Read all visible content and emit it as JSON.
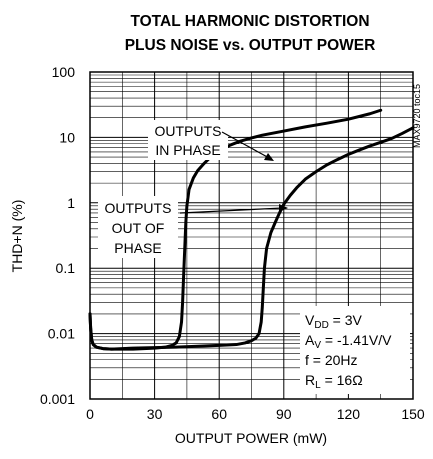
{
  "chart_data": {
    "type": "line",
    "title_lines": [
      "TOTAL HARMONIC DISTORTION",
      "PLUS NOISE vs. OUTPUT POWER"
    ],
    "xlabel": "OUTPUT POWER (mW)",
    "ylabel": "THD+N (%)",
    "x_scale": "linear",
    "y_scale": "log",
    "xlim": [
      0,
      150
    ],
    "ylim": [
      0.001,
      100
    ],
    "x_ticks": [
      0,
      30,
      60,
      90,
      120,
      150
    ],
    "x_tick_labels": [
      "0",
      "30",
      "60",
      "90",
      "120",
      "150"
    ],
    "y_ticks": [
      0.001,
      0.01,
      0.1,
      1,
      10,
      100
    ],
    "y_tick_labels": [
      "0.001",
      "0.01",
      "0.1",
      "1",
      "10",
      "100"
    ],
    "grid": true,
    "legend": "none",
    "series": [
      {
        "name": "OUTPUTS IN PHASE",
        "label_lines": [
          "OUTPUTS",
          "IN PHASE"
        ],
        "x": [
          0,
          0.3,
          0.8,
          1.5,
          3,
          6,
          10,
          15,
          20,
          25,
          30,
          35,
          38,
          40,
          41.5,
          42.5,
          43,
          43.5,
          44,
          44.5,
          45,
          46,
          48,
          50,
          53,
          56,
          60,
          65,
          70,
          75,
          80,
          90,
          100,
          110,
          120,
          130,
          135
        ],
        "y": [
          0.02,
          0.012,
          0.008,
          0.0068,
          0.0062,
          0.0059,
          0.0058,
          0.0058,
          0.0058,
          0.0059,
          0.006,
          0.0062,
          0.0066,
          0.0072,
          0.009,
          0.015,
          0.03,
          0.08,
          0.2,
          0.5,
          0.9,
          1.6,
          2.4,
          3.1,
          4.0,
          5.0,
          6.2,
          7.6,
          8.8,
          9.8,
          10.8,
          12.5,
          14.5,
          16.5,
          19.0,
          23.0,
          26.0
        ]
      },
      {
        "name": "OUTPUTS OUT OF PHASE",
        "label_lines": [
          "OUTPUTS",
          "OUT OF",
          "PHASE"
        ],
        "x": [
          0,
          0.3,
          0.8,
          1.5,
          3,
          6,
          10,
          15,
          20,
          30,
          40,
          50,
          60,
          68,
          72,
          75,
          77,
          78.5,
          79.5,
          80,
          80.5,
          81,
          82,
          84,
          86,
          88,
          90,
          93,
          96,
          100,
          105,
          110,
          115,
          120,
          125,
          130,
          135,
          140,
          145,
          150
        ],
        "y": [
          0.02,
          0.012,
          0.008,
          0.0068,
          0.0062,
          0.0059,
          0.0058,
          0.0059,
          0.006,
          0.0061,
          0.0062,
          0.0064,
          0.0066,
          0.0068,
          0.0072,
          0.0078,
          0.0085,
          0.01,
          0.015,
          0.025,
          0.05,
          0.1,
          0.2,
          0.35,
          0.5,
          0.7,
          0.95,
          1.3,
          1.7,
          2.3,
          3.0,
          3.8,
          4.6,
          5.5,
          6.4,
          7.4,
          8.4,
          9.6,
          11.5,
          14.0
        ]
      }
    ],
    "annotations": {
      "conditions": {
        "vdd": {
          "main": "V",
          "sub": "DD",
          "rest": " = 3V"
        },
        "av": {
          "main": "A",
          "sub": "V",
          "rest": " = -1.41V/V"
        },
        "f": {
          "main": "f = 20Hz"
        },
        "rl": {
          "main": "R",
          "sub": "L",
          "rest": " = 16Ω"
        }
      },
      "part_tag": "MAX9720 toc15"
    }
  }
}
